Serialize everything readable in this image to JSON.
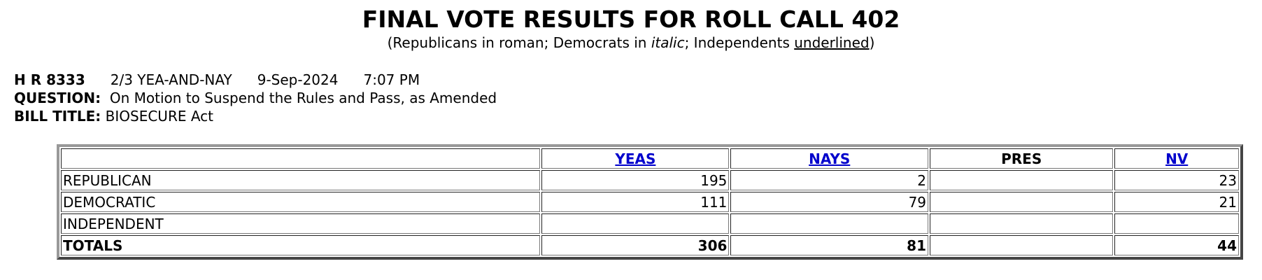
{
  "header": {
    "title": "FINAL VOTE RESULTS FOR ROLL CALL 402",
    "subtitle": {
      "open": "(Republicans in roman; Democrats in ",
      "italic": "italic",
      "middle": "; Independents ",
      "underlined": "underlined",
      "close": ")"
    }
  },
  "info": {
    "bill": "H R 8333",
    "vote_type": "2/3 YEA-AND-NAY",
    "date": "9-Sep-2024",
    "time": "7:07 PM",
    "question_label": "QUESTION:",
    "question": "On Motion to Suspend the Rules and Pass, as Amended",
    "bill_title_label": "BILL TITLE:",
    "bill_title": "BIOSECURE Act"
  },
  "table": {
    "columns": [
      {
        "label": "YEAS",
        "link": true
      },
      {
        "label": "NAYS",
        "link": true
      },
      {
        "label": "PRES",
        "link": false
      },
      {
        "label": "NV",
        "link": true
      }
    ],
    "rows": [
      {
        "party": "REPUBLICAN",
        "values": [
          195,
          2,
          null,
          23
        ]
      },
      {
        "party": "DEMOCRATIC",
        "values": [
          111,
          79,
          null,
          21
        ]
      },
      {
        "party": "INDEPENDENT",
        "values": [
          null,
          null,
          null,
          null
        ]
      }
    ],
    "totals": {
      "label": "TOTALS",
      "values": [
        306,
        81,
        null,
        44
      ]
    }
  }
}
